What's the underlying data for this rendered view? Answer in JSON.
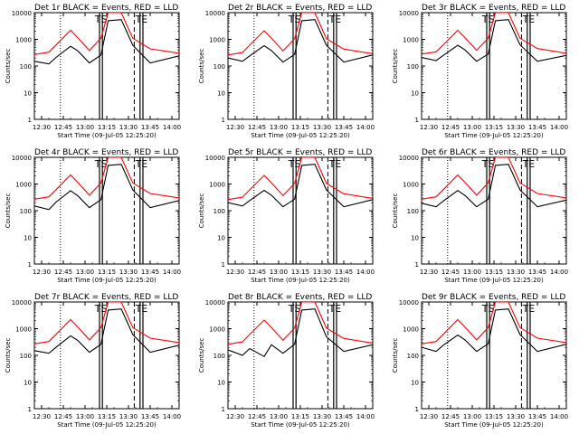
{
  "figure": {
    "ylabel": "Counts/sec",
    "xlabel": "Start Time (09-Jul-05 12:25:20)",
    "x_ticks": [
      "12:30",
      "12:45",
      "13:00",
      "13:15",
      "13:30",
      "13:45",
      "14:00"
    ],
    "y_ticks": [
      "1",
      "10",
      "100",
      "1000",
      "10000"
    ],
    "colors": {
      "events": "#000000",
      "lld": "#ff0000",
      "frame": "#000000",
      "background": "#ffffff"
    }
  },
  "chart_data": [
    {
      "type": "line",
      "title": "Det 1r BLACK = Events, RED = LLD",
      "markers": {
        "ts": "TS",
        "te": "TE"
      },
      "xlim": [
        "12:25",
        "14:05"
      ],
      "ylim": [
        1,
        10000
      ],
      "yscale": "log",
      "series": [
        {
          "values": [
            150,
            120,
            210,
            550,
            370,
            130,
            260,
            5000,
            5500,
            600,
            130,
            240
          ]
        },
        {
          "values": [
            270,
            330,
            610,
            2200,
            1150,
            380,
            1100,
            10000,
            10000,
            1100,
            440,
            300
          ]
        }
      ]
    },
    {
      "type": "line",
      "title": "Det 2r BLACK = Events, RED = LLD",
      "markers": {
        "ts": "TS",
        "te": "TE"
      },
      "xlim": [
        "12:25",
        "14:05"
      ],
      "ylim": [
        1,
        10000
      ],
      "yscale": "log",
      "series": [
        {
          "values": [
            200,
            150,
            240,
            580,
            380,
            140,
            270,
            5000,
            5500,
            600,
            140,
            260
          ]
        },
        {
          "values": [
            260,
            320,
            600,
            2100,
            1100,
            370,
            1050,
            10000,
            10000,
            1050,
            430,
            290
          ]
        }
      ]
    },
    {
      "type": "line",
      "title": "Det 3r BLACK = Events, RED = LLD",
      "markers": {
        "ts": "TS",
        "te": "TE"
      },
      "xlim": [
        "12:25",
        "14:05"
      ],
      "ylim": [
        1,
        10000
      ],
      "yscale": "log",
      "series": [
        {
          "values": [
            210,
            160,
            250,
            600,
            400,
            150,
            280,
            5000,
            5500,
            620,
            150,
            250
          ]
        },
        {
          "values": [
            280,
            340,
            620,
            2200,
            1150,
            390,
            1100,
            10000,
            10000,
            1100,
            450,
            300
          ]
        }
      ]
    },
    {
      "type": "line",
      "title": "Det 4r BLACK = Events, RED = LLD",
      "markers": {
        "ts": "TS",
        "te": "TE"
      },
      "xlim": [
        "12:25",
        "14:05"
      ],
      "ylim": [
        1,
        10000
      ],
      "yscale": "log",
      "series": [
        {
          "values": [
            150,
            110,
            210,
            560,
            360,
            130,
            260,
            5000,
            5500,
            600,
            130,
            240
          ]
        },
        {
          "values": [
            270,
            330,
            610,
            2200,
            1150,
            380,
            1100,
            10000,
            10000,
            1100,
            440,
            300
          ]
        }
      ]
    },
    {
      "type": "line",
      "title": "Det 5r BLACK = Events, RED = LLD",
      "markers": {
        "ts": "TS",
        "te": "TE"
      },
      "xlim": [
        "12:25",
        "14:05"
      ],
      "ylim": [
        1,
        10000
      ],
      "yscale": "log",
      "series": [
        {
          "values": [
            200,
            150,
            240,
            580,
            380,
            140,
            270,
            5000,
            5500,
            600,
            140,
            260
          ]
        },
        {
          "values": [
            260,
            320,
            600,
            2100,
            1100,
            370,
            1050,
            10000,
            10000,
            1050,
            430,
            290
          ]
        }
      ]
    },
    {
      "type": "line",
      "title": "Det 6r BLACK = Events, RED = LLD",
      "markers": {
        "ts": "TS",
        "te": "TE"
      },
      "xlim": [
        "12:25",
        "14:05"
      ],
      "ylim": [
        1,
        10000
      ],
      "yscale": "log",
      "series": [
        {
          "values": [
            190,
            140,
            230,
            570,
            370,
            140,
            270,
            5000,
            5500,
            600,
            140,
            250
          ]
        },
        {
          "values": [
            270,
            330,
            610,
            2200,
            1150,
            380,
            1100,
            10000,
            10000,
            1100,
            440,
            300
          ]
        }
      ]
    },
    {
      "type": "line",
      "title": "Det 7r BLACK = Events, RED = LLD",
      "markers": {
        "ts": "TS",
        "te": "TE"
      },
      "xlim": [
        "12:25",
        "14:05"
      ],
      "ylim": [
        1,
        10000
      ],
      "yscale": "log",
      "series": [
        {
          "values": [
            150,
            120,
            200,
            540,
            360,
            130,
            260,
            5000,
            5500,
            600,
            130,
            240
          ]
        },
        {
          "values": [
            270,
            330,
            610,
            2200,
            1150,
            380,
            1100,
            10000,
            10000,
            1100,
            440,
            300
          ]
        }
      ]
    },
    {
      "type": "line",
      "title": "Det 8r BLACK = Events, RED = LLD",
      "markers": {
        "ts": "TS",
        "te": "TE"
      },
      "xlim": [
        "12:25",
        "14:05"
      ],
      "ylim": [
        1,
        10000
      ],
      "yscale": "log",
      "series": [
        {
          "values": [
            160,
            100,
            180,
            90,
            250,
            120,
            260,
            5000,
            5500,
            500,
            140,
            250
          ]
        },
        {
          "values": [
            260,
            320,
            600,
            2100,
            1100,
            370,
            1050,
            10000,
            10000,
            1050,
            430,
            290
          ]
        }
      ]
    },
    {
      "type": "line",
      "title": "Det 9r BLACK = Events, RED = LLD",
      "markers": {
        "ts": "TS",
        "te": "TE"
      },
      "xlim": [
        "12:25",
        "14:05"
      ],
      "ylim": [
        1,
        10000
      ],
      "yscale": "log",
      "series": [
        {
          "values": [
            200,
            140,
            240,
            580,
            380,
            140,
            270,
            5000,
            5500,
            600,
            140,
            260
          ]
        },
        {
          "values": [
            270,
            330,
            610,
            2200,
            1150,
            380,
            1100,
            10000,
            10000,
            1100,
            440,
            300
          ]
        }
      ]
    }
  ]
}
